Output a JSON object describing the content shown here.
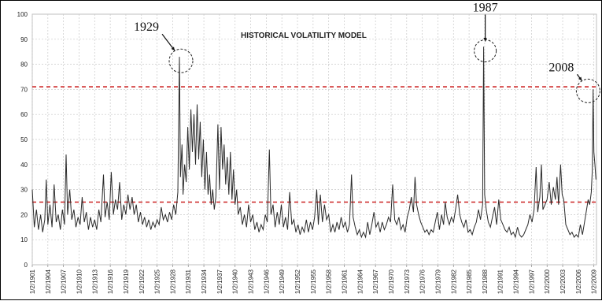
{
  "chart_data": {
    "type": "line",
    "title": "HISTORICAL VOLATILITY MODEL",
    "xlabel": "",
    "ylabel": "",
    "ylim": [
      0,
      100
    ],
    "xlim": [
      1901,
      2009.5
    ],
    "y_ticks": [
      "0",
      "10",
      "20",
      "30",
      "40",
      "50",
      "60",
      "70",
      "80",
      "90",
      "100"
    ],
    "x_ticks": [
      "1/2/1901",
      "1/2/1904",
      "1/2/1907",
      "1/2/1910",
      "1/2/1913",
      "1/2/1916",
      "1/2/1919",
      "1/2/1922",
      "1/2/1925",
      "1/2/1928",
      "1/2/1931",
      "1/2/1934",
      "1/2/1937",
      "1/2/1940",
      "1/2/1943",
      "1/2/1946",
      "1/2/1949",
      "1/2/1952",
      "1/2/1955",
      "1/2/1958",
      "1/2/1961",
      "1/2/1964",
      "1/2/1967",
      "1/2/1970",
      "1/2/1973",
      "1/2/1976",
      "1/2/1979",
      "1/2/1982",
      "1/2/1985",
      "1/2/1988",
      "1/2/1991",
      "1/2/1994",
      "1/2/1997",
      "1/2/2000",
      "1/2/2003",
      "1/2/2006",
      "1/2/2009"
    ],
    "grid": true,
    "reference_lines": [
      {
        "y": 71,
        "color": "#cc2222",
        "style": "dashed"
      },
      {
        "y": 25,
        "color": "#cc2222",
        "style": "dashed"
      }
    ],
    "annotations": [
      {
        "label": "1929",
        "x": 1929.3,
        "y": 82
      },
      {
        "label": "1987",
        "x": 1987.8,
        "y": 86
      },
      {
        "label": "2008",
        "x": 2008.5,
        "y": 70
      }
    ],
    "series": [
      {
        "values": [
          [
            1901.0,
            30
          ],
          [
            1901.4,
            15
          ],
          [
            1901.8,
            22
          ],
          [
            1902.2,
            14
          ],
          [
            1902.6,
            20
          ],
          [
            1903.0,
            13
          ],
          [
            1903.4,
            18
          ],
          [
            1903.7,
            34
          ],
          [
            1904.0,
            16
          ],
          [
            1904.4,
            24
          ],
          [
            1904.8,
            15
          ],
          [
            1905.2,
            32
          ],
          [
            1905.6,
            17
          ],
          [
            1906.0,
            20
          ],
          [
            1906.4,
            14
          ],
          [
            1906.8,
            22
          ],
          [
            1907.2,
            16
          ],
          [
            1907.5,
            44
          ],
          [
            1907.8,
            20
          ],
          [
            1908.2,
            30
          ],
          [
            1908.6,
            18
          ],
          [
            1909.0,
            22
          ],
          [
            1909.4,
            15
          ],
          [
            1909.8,
            19
          ],
          [
            1910.2,
            16
          ],
          [
            1910.6,
            27
          ],
          [
            1911.0,
            17
          ],
          [
            1911.4,
            21
          ],
          [
            1911.8,
            14
          ],
          [
            1912.2,
            19
          ],
          [
            1912.6,
            15
          ],
          [
            1913.0,
            18
          ],
          [
            1913.4,
            14
          ],
          [
            1913.8,
            22
          ],
          [
            1914.2,
            17
          ],
          [
            1914.7,
            36
          ],
          [
            1915.0,
            19
          ],
          [
            1915.4,
            25
          ],
          [
            1915.8,
            18
          ],
          [
            1916.2,
            37
          ],
          [
            1916.6,
            20
          ],
          [
            1917.0,
            26
          ],
          [
            1917.4,
            22
          ],
          [
            1917.8,
            33
          ],
          [
            1918.2,
            18
          ],
          [
            1918.6,
            24
          ],
          [
            1919.0,
            20
          ],
          [
            1919.4,
            28
          ],
          [
            1919.8,
            22
          ],
          [
            1920.2,
            27
          ],
          [
            1920.6,
            20
          ],
          [
            1921.0,
            24
          ],
          [
            1921.4,
            17
          ],
          [
            1921.8,
            21
          ],
          [
            1922.2,
            16
          ],
          [
            1922.6,
            19
          ],
          [
            1923.0,
            15
          ],
          [
            1923.4,
            18
          ],
          [
            1923.8,
            14
          ],
          [
            1924.2,
            17
          ],
          [
            1924.6,
            15
          ],
          [
            1925.0,
            18
          ],
          [
            1925.4,
            16
          ],
          [
            1925.8,
            23
          ],
          [
            1926.2,
            18
          ],
          [
            1926.6,
            20
          ],
          [
            1927.0,
            17
          ],
          [
            1927.4,
            21
          ],
          [
            1927.8,
            18
          ],
          [
            1928.2,
            24
          ],
          [
            1928.6,
            20
          ],
          [
            1929.0,
            29
          ],
          [
            1929.3,
            83
          ],
          [
            1929.5,
            35
          ],
          [
            1929.8,
            48
          ],
          [
            1930.0,
            28
          ],
          [
            1930.3,
            40
          ],
          [
            1930.6,
            33
          ],
          [
            1930.9,
            55
          ],
          [
            1931.2,
            38
          ],
          [
            1931.5,
            62
          ],
          [
            1931.8,
            45
          ],
          [
            1932.1,
            60
          ],
          [
            1932.4,
            40
          ],
          [
            1932.7,
            64
          ],
          [
            1933.0,
            42
          ],
          [
            1933.3,
            57
          ],
          [
            1933.6,
            35
          ],
          [
            1933.9,
            50
          ],
          [
            1934.2,
            30
          ],
          [
            1934.5,
            45
          ],
          [
            1934.8,
            28
          ],
          [
            1935.1,
            36
          ],
          [
            1935.4,
            24
          ],
          [
            1935.7,
            30
          ],
          [
            1936.0,
            22
          ],
          [
            1936.3,
            27
          ],
          [
            1936.7,
            56
          ],
          [
            1937.0,
            30
          ],
          [
            1937.3,
            55
          ],
          [
            1937.6,
            38
          ],
          [
            1937.9,
            48
          ],
          [
            1938.2,
            32
          ],
          [
            1938.5,
            43
          ],
          [
            1938.8,
            28
          ],
          [
            1939.1,
            45
          ],
          [
            1939.4,
            26
          ],
          [
            1939.7,
            38
          ],
          [
            1940.0,
            24
          ],
          [
            1940.3,
            30
          ],
          [
            1940.6,
            20
          ],
          [
            1941.0,
            23
          ],
          [
            1941.4,
            16
          ],
          [
            1941.8,
            20
          ],
          [
            1942.2,
            15
          ],
          [
            1942.6,
            24
          ],
          [
            1943.0,
            17
          ],
          [
            1943.4,
            20
          ],
          [
            1943.8,
            14
          ],
          [
            1944.2,
            17
          ],
          [
            1944.6,
            13
          ],
          [
            1945.0,
            16
          ],
          [
            1945.4,
            14
          ],
          [
            1945.8,
            20
          ],
          [
            1946.2,
            17
          ],
          [
            1946.6,
            46
          ],
          [
            1946.9,
            20
          ],
          [
            1947.3,
            24
          ],
          [
            1947.7,
            15
          ],
          [
            1948.1,
            21
          ],
          [
            1948.5,
            16
          ],
          [
            1948.9,
            24
          ],
          [
            1949.3,
            15
          ],
          [
            1949.7,
            19
          ],
          [
            1950.1,
            14
          ],
          [
            1950.5,
            29
          ],
          [
            1950.9,
            16
          ],
          [
            1951.3,
            18
          ],
          [
            1951.7,
            13
          ],
          [
            1952.1,
            16
          ],
          [
            1952.5,
            12
          ],
          [
            1952.9,
            15
          ],
          [
            1953.3,
            13
          ],
          [
            1953.7,
            18
          ],
          [
            1954.1,
            13
          ],
          [
            1954.5,
            17
          ],
          [
            1954.9,
            14
          ],
          [
            1955.3,
            19
          ],
          [
            1955.7,
            30
          ],
          [
            1956.0,
            16
          ],
          [
            1956.4,
            28
          ],
          [
            1956.8,
            17
          ],
          [
            1957.2,
            24
          ],
          [
            1957.6,
            18
          ],
          [
            1958.0,
            20
          ],
          [
            1958.4,
            13
          ],
          [
            1958.8,
            16
          ],
          [
            1959.2,
            13
          ],
          [
            1959.6,
            17
          ],
          [
            1960.0,
            14
          ],
          [
            1960.4,
            19
          ],
          [
            1960.8,
            15
          ],
          [
            1961.2,
            17
          ],
          [
            1961.6,
            13
          ],
          [
            1962.0,
            16
          ],
          [
            1962.4,
            36
          ],
          [
            1962.7,
            19
          ],
          [
            1963.1,
            15
          ],
          [
            1963.5,
            12
          ],
          [
            1963.9,
            14
          ],
          [
            1964.3,
            11
          ],
          [
            1964.7,
            13
          ],
          [
            1965.1,
            11
          ],
          [
            1965.5,
            17
          ],
          [
            1965.9,
            12
          ],
          [
            1966.3,
            16
          ],
          [
            1966.7,
            21
          ],
          [
            1967.1,
            15
          ],
          [
            1967.5,
            17
          ],
          [
            1967.9,
            13
          ],
          [
            1968.3,
            17
          ],
          [
            1968.7,
            14
          ],
          [
            1969.1,
            16
          ],
          [
            1969.5,
            19
          ],
          [
            1969.9,
            17
          ],
          [
            1970.3,
            32
          ],
          [
            1970.7,
            18
          ],
          [
            1971.1,
            16
          ],
          [
            1971.5,
            19
          ],
          [
            1971.9,
            14
          ],
          [
            1972.3,
            16
          ],
          [
            1972.7,
            13
          ],
          [
            1973.1,
            19
          ],
          [
            1973.5,
            22
          ],
          [
            1973.9,
            27
          ],
          [
            1974.3,
            21
          ],
          [
            1974.6,
            35
          ],
          [
            1974.9,
            24
          ],
          [
            1975.3,
            20
          ],
          [
            1975.7,
            17
          ],
          [
            1976.1,
            15
          ],
          [
            1976.5,
            13
          ],
          [
            1976.9,
            14
          ],
          [
            1977.3,
            12
          ],
          [
            1977.7,
            14
          ],
          [
            1978.1,
            13
          ],
          [
            1978.5,
            17
          ],
          [
            1978.9,
            21
          ],
          [
            1979.3,
            14
          ],
          [
            1979.7,
            20
          ],
          [
            1980.1,
            16
          ],
          [
            1980.4,
            25
          ],
          [
            1980.8,
            19
          ],
          [
            1981.2,
            16
          ],
          [
            1981.6,
            19
          ],
          [
            1982.0,
            17
          ],
          [
            1982.4,
            22
          ],
          [
            1982.8,
            28
          ],
          [
            1983.2,
            20
          ],
          [
            1983.6,
            17
          ],
          [
            1984.0,
            15
          ],
          [
            1984.4,
            18
          ],
          [
            1984.8,
            13
          ],
          [
            1985.2,
            14
          ],
          [
            1985.6,
            12
          ],
          [
            1986.0,
            15
          ],
          [
            1986.4,
            17
          ],
          [
            1986.8,
            22
          ],
          [
            1987.2,
            18
          ],
          [
            1987.6,
            24
          ],
          [
            1987.8,
            87
          ],
          [
            1988.0,
            28
          ],
          [
            1988.3,
            22
          ],
          [
            1988.7,
            17
          ],
          [
            1989.1,
            15
          ],
          [
            1989.5,
            19
          ],
          [
            1989.9,
            23
          ],
          [
            1990.3,
            16
          ],
          [
            1990.7,
            26
          ],
          [
            1991.1,
            18
          ],
          [
            1991.5,
            16
          ],
          [
            1991.9,
            14
          ],
          [
            1992.3,
            13
          ],
          [
            1992.7,
            15
          ],
          [
            1993.1,
            12
          ],
          [
            1993.5,
            13
          ],
          [
            1993.9,
            11
          ],
          [
            1994.3,
            15
          ],
          [
            1994.7,
            12
          ],
          [
            1995.1,
            11
          ],
          [
            1995.5,
            12
          ],
          [
            1995.9,
            14
          ],
          [
            1996.3,
            16
          ],
          [
            1996.7,
            20
          ],
          [
            1997.1,
            17
          ],
          [
            1997.5,
            22
          ],
          [
            1997.9,
            39
          ],
          [
            1998.2,
            21
          ],
          [
            1998.6,
            27
          ],
          [
            1998.9,
            40
          ],
          [
            1999.2,
            22
          ],
          [
            1999.6,
            24
          ],
          [
            2000.0,
            26
          ],
          [
            2000.4,
            33
          ],
          [
            2000.8,
            24
          ],
          [
            2001.2,
            31
          ],
          [
            2001.6,
            26
          ],
          [
            2001.9,
            35
          ],
          [
            2002.2,
            24
          ],
          [
            2002.6,
            40
          ],
          [
            2002.9,
            28
          ],
          [
            2003.2,
            26
          ],
          [
            2003.6,
            16
          ],
          [
            2004.0,
            14
          ],
          [
            2004.4,
            12
          ],
          [
            2004.8,
            13
          ],
          [
            2005.2,
            11
          ],
          [
            2005.6,
            12
          ],
          [
            2006.0,
            11
          ],
          [
            2006.4,
            16
          ],
          [
            2006.8,
            12
          ],
          [
            2007.2,
            17
          ],
          [
            2007.6,
            22
          ],
          [
            2007.9,
            26
          ],
          [
            2008.2,
            24
          ],
          [
            2008.5,
            29
          ],
          [
            2008.7,
            38
          ],
          [
            2008.85,
            70
          ],
          [
            2009.0,
            45
          ],
          [
            2009.2,
            40
          ],
          [
            2009.4,
            34
          ]
        ]
      }
    ]
  }
}
